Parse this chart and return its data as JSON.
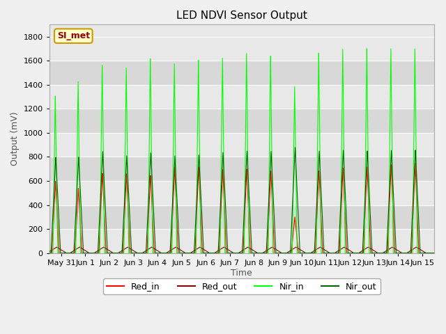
{
  "title": "LED NDVI Sensor Output",
  "xlabel": "Time",
  "ylabel": "Output (mV)",
  "ylim": [
    0,
    1900
  ],
  "yticks": [
    0,
    200,
    400,
    600,
    800,
    1000,
    1200,
    1400,
    1600,
    1800
  ],
  "bg_color": "#f0f0f0",
  "plot_bg_color": "#e8e8e8",
  "band_color_light": "#e8e8e8",
  "band_color_dark": "#d8d8d8",
  "legend_label": "SI_met",
  "legend_bg": "#ffffcc",
  "legend_border": "#cc9900",
  "colors": {
    "Red_in": "#ff0000",
    "Red_out": "#8b0000",
    "Nir_in": "#00ff00",
    "Nir_out": "#006400"
  },
  "tick_days": [
    0,
    1,
    2,
    3,
    4,
    5,
    6,
    7,
    8,
    9,
    10,
    11,
    12,
    13,
    14,
    15
  ],
  "tick_labels": [
    "May 31",
    "Jun 1",
    "Jun 2",
    "Jun 3",
    "Jun 4",
    "Jun 5",
    "Jun 6",
    "Jun 7",
    "Jun 8",
    "Jun 9",
    "Jun 10",
    "Jun 11",
    "Jun 12",
    "Jun 13",
    "Jun 14",
    "Jun 15"
  ],
  "nir_in_heights": [
    1310,
    1430,
    1580,
    1550,
    1630,
    1590,
    1610,
    1645,
    1660,
    1660,
    1390,
    1680,
    1710,
    1710,
    1720,
    1700
  ],
  "nir_out_heights": [
    800,
    800,
    850,
    810,
    840,
    810,
    820,
    840,
    850,
    850,
    880,
    855,
    855,
    855,
    855,
    860
  ],
  "red_in_heights": [
    600,
    540,
    670,
    660,
    650,
    720,
    720,
    700,
    700,
    690,
    300,
    690,
    710,
    720,
    740,
    750
  ],
  "red_out_heights": [
    50,
    50,
    50,
    50,
    50,
    50,
    50,
    50,
    50,
    50,
    50,
    50,
    50,
    50,
    50,
    50
  ],
  "spike_positions": [
    -0.25,
    0.7,
    1.7,
    2.7,
    3.7,
    4.7,
    5.7,
    6.7,
    7.7,
    8.7,
    9.7,
    10.7,
    11.7,
    12.7,
    13.7,
    14.7
  ]
}
